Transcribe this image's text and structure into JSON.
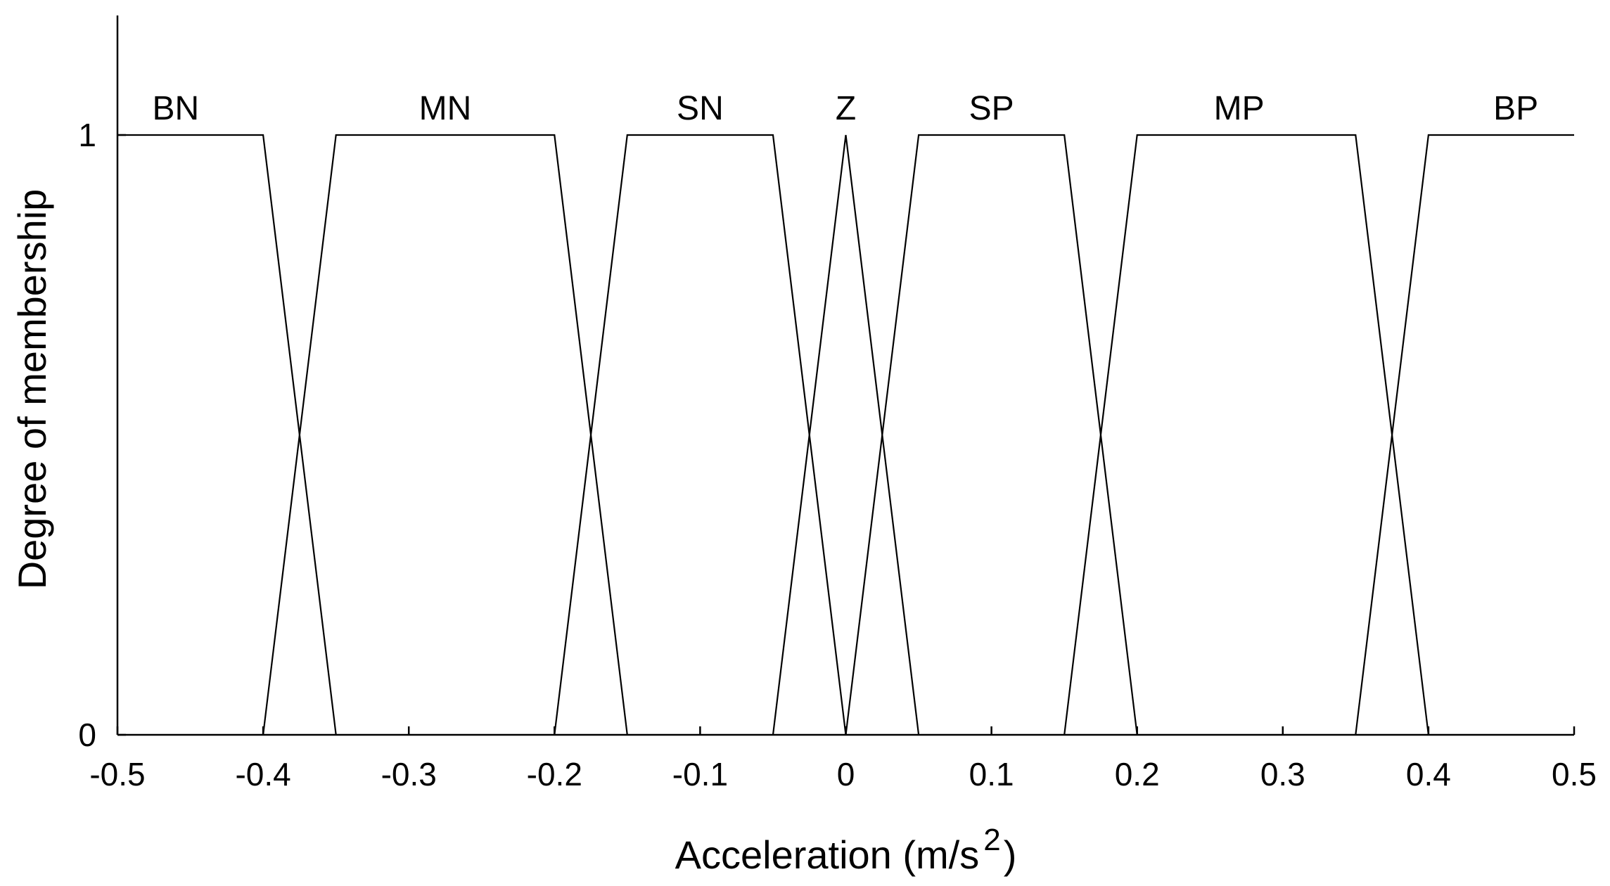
{
  "chart_data": {
    "type": "line",
    "xlabel": "Acceleration (m/s",
    "xlabel_superscript": "2",
    "xlabel_suffix": ")",
    "ylabel": "Degree of membership",
    "xlim": [
      -0.5,
      0.5
    ],
    "ylim": [
      0,
      1
    ],
    "xticks": [
      "-0.5",
      "-0.4",
      "-0.3",
      "-0.2",
      "-0.1",
      "0",
      "0.1",
      "0.2",
      "0.3",
      "0.4",
      "0.5"
    ],
    "yticks": [
      "0",
      "1"
    ],
    "grid": false,
    "series": [
      {
        "name": "BN",
        "label_x": -0.46,
        "x": [
          -0.5,
          -0.4,
          -0.35
        ],
        "y": [
          1,
          1,
          0
        ]
      },
      {
        "name": "MN",
        "label_x": -0.275,
        "x": [
          -0.4,
          -0.35,
          -0.2,
          -0.15
        ],
        "y": [
          0,
          1,
          1,
          0
        ]
      },
      {
        "name": "SN",
        "label_x": -0.1,
        "x": [
          -0.2,
          -0.15,
          -0.05,
          0
        ],
        "y": [
          0,
          1,
          1,
          0
        ]
      },
      {
        "name": "Z",
        "label_x": 0.0,
        "x": [
          -0.05,
          0,
          0.05
        ],
        "y": [
          0,
          1,
          0
        ]
      },
      {
        "name": "SP",
        "label_x": 0.1,
        "x": [
          0,
          0.05,
          0.15,
          0.2
        ],
        "y": [
          0,
          1,
          1,
          0
        ]
      },
      {
        "name": "MP",
        "label_x": 0.27,
        "x": [
          0.15,
          0.2,
          0.35,
          0.4
        ],
        "y": [
          0,
          1,
          1,
          0
        ]
      },
      {
        "name": "BP",
        "label_x": 0.46,
        "x": [
          0.35,
          0.4,
          0.5
        ],
        "y": [
          0,
          1,
          1
        ]
      }
    ]
  }
}
